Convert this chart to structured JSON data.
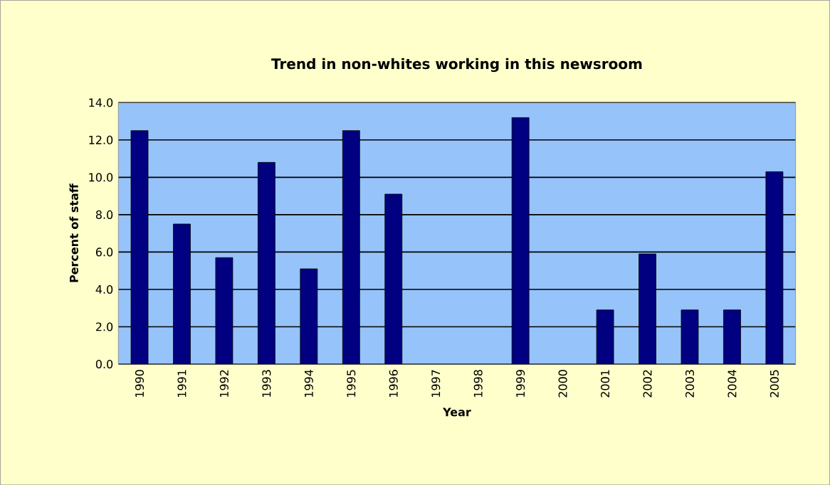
{
  "chart_data": {
    "type": "bar",
    "title": "Trend in non-whites working in this newsroom",
    "xlabel": "Year",
    "ylabel": "Percent of staff",
    "categories": [
      "1990",
      "1991",
      "1992",
      "1993",
      "1994",
      "1995",
      "1996",
      "1997",
      "1998",
      "1999",
      "2000",
      "2001",
      "2002",
      "2003",
      "2004",
      "2005"
    ],
    "values": [
      12.5,
      7.5,
      5.7,
      10.8,
      5.1,
      12.5,
      9.1,
      null,
      null,
      13.2,
      null,
      2.9,
      5.9,
      2.9,
      2.9,
      10.3
    ],
    "color": "#000080",
    "ylim": [
      0,
      14
    ],
    "yticks": [
      {
        "value": 0,
        "label": "0.0"
      },
      {
        "value": 2,
        "label": "2.0"
      },
      {
        "value": 4,
        "label": "4.0"
      },
      {
        "value": 6,
        "label": "6.0"
      },
      {
        "value": 8,
        "label": "8.0"
      },
      {
        "value": 10,
        "label": "10.0"
      },
      {
        "value": 12,
        "label": "12.0"
      },
      {
        "value": 14,
        "label": "14.0"
      }
    ],
    "grid": "y"
  }
}
